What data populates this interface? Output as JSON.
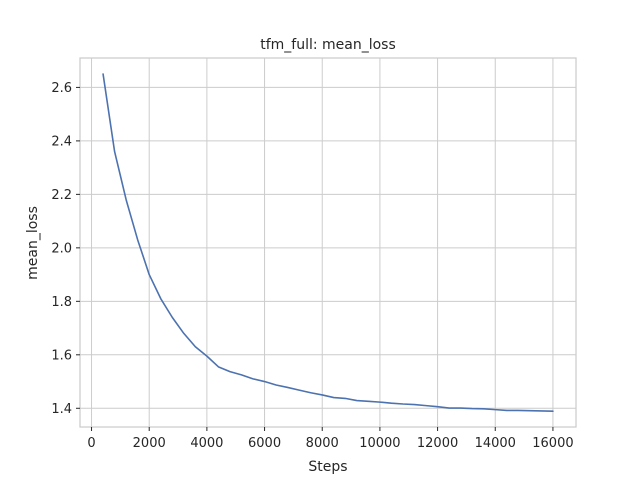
{
  "chart_data": {
    "type": "line",
    "title": "tfm_full: mean_loss",
    "xlabel": "Steps",
    "ylabel": "mean_loss",
    "xlim": [
      -400,
      16800
    ],
    "ylim": [
      1.33,
      2.71
    ],
    "xticks": [
      0,
      2000,
      4000,
      6000,
      8000,
      10000,
      12000,
      14000,
      16000
    ],
    "xtick_labels": [
      "0",
      "2000",
      "4000",
      "6000",
      "8000",
      "10000",
      "12000",
      "14000",
      "16000"
    ],
    "yticks": [
      1.4,
      1.6,
      1.8,
      2.0,
      2.2,
      2.4,
      2.6
    ],
    "ytick_labels": [
      "1.4",
      "1.6",
      "1.8",
      "2.0",
      "2.2",
      "2.4",
      "2.6"
    ],
    "grid": true,
    "legend": "none",
    "series": [
      {
        "color": "#4c72b0",
        "x": [
          400,
          800,
          1200,
          1600,
          2000,
          2400,
          2800,
          3200,
          3600,
          4000,
          4400,
          4800,
          5200,
          5600,
          6000,
          6400,
          6800,
          7200,
          7600,
          8000,
          8400,
          8800,
          9200,
          9600,
          10000,
          10400,
          10800,
          11200,
          11600,
          12000,
          12400,
          12800,
          13200,
          13600,
          14000,
          14400,
          14800,
          15200,
          15600,
          16000
        ],
        "y": [
          2.65,
          2.36,
          2.18,
          2.03,
          1.9,
          1.81,
          1.74,
          1.68,
          1.63,
          1.595,
          1.555,
          1.537,
          1.525,
          1.51,
          1.5,
          1.487,
          1.478,
          1.468,
          1.458,
          1.45,
          1.44,
          1.437,
          1.429,
          1.426,
          1.423,
          1.419,
          1.416,
          1.414,
          1.41,
          1.406,
          1.401,
          1.401,
          1.399,
          1.398,
          1.395,
          1.392,
          1.392,
          1.391,
          1.39,
          1.389
        ]
      }
    ]
  }
}
